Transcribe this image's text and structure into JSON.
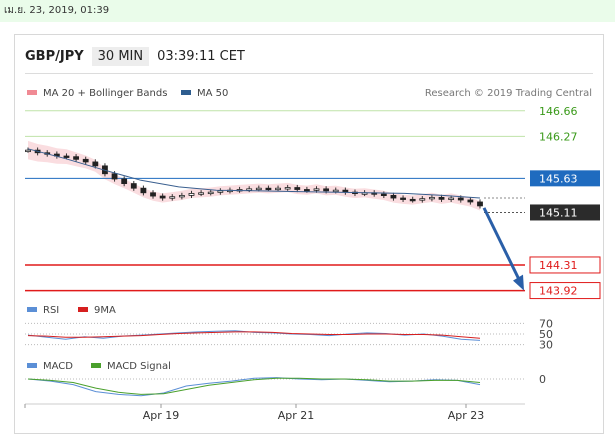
{
  "datetime": "เม.ย. 23, 2019, 01:39",
  "header": {
    "symbol": "GBP/JPY",
    "timeframe": "30 MIN",
    "time": "03:39:11 CET"
  },
  "colors": {
    "green_level": "#3a9a1a",
    "blue_level": "#1f6bbf",
    "red_level": "#e01a1a",
    "current_badge": "#2b2b2b",
    "arrow": "#2a5fa8",
    "ma50": "#3a5f8f",
    "bands": "#f7c6cc",
    "rsi": "#5b8fd6",
    "ninema": "#d61f1f",
    "macd": "#5b8fd6",
    "macd_signal": "#4aa02c"
  },
  "main_legend": [
    {
      "label": "MA 20 + Bollinger Bands",
      "color": "#f08a94"
    },
    {
      "label": "MA 50",
      "color": "#2e5d8f"
    }
  ],
  "credit": "Research © 2019 Trading Central",
  "rsi_legend": [
    {
      "label": "RSI",
      "color": "#5b8fd6"
    },
    {
      "label": "9MA",
      "color": "#d61f1f"
    }
  ],
  "macd_legend": [
    {
      "label": "MACD",
      "color": "#5b8fd6"
    },
    {
      "label": "MACD Signal",
      "color": "#4aa02c"
    }
  ],
  "chart_data": [
    {
      "type": "line",
      "title": "GBP/JPY 30 MIN",
      "x_ticks": [
        "Apr 19",
        "Apr 21",
        "Apr 23"
      ],
      "ylim": [
        143.7,
        146.9
      ],
      "levels": [
        {
          "label": "146.66",
          "value": 146.66,
          "kind": "resistance",
          "color": "#3a9a1a"
        },
        {
          "label": "146.27",
          "value": 146.27,
          "kind": "resistance",
          "color": "#3a9a1a"
        },
        {
          "label": "145.63",
          "value": 145.63,
          "kind": "pivot",
          "color": "#1f6bbf"
        },
        {
          "label": "145.11",
          "value": 145.11,
          "kind": "current",
          "color": "#2b2b2b"
        },
        {
          "label": "144.31",
          "value": 144.31,
          "kind": "support",
          "color": "#e01a1a"
        },
        {
          "label": "143.92",
          "value": 143.92,
          "kind": "support",
          "color": "#e01a1a"
        }
      ],
      "series": [
        {
          "values": [
            146.06,
            146.02,
            146.0,
            145.97,
            145.96,
            145.92,
            145.88,
            145.82,
            145.7,
            145.62,
            145.55,
            145.48,
            145.41,
            145.36,
            145.33,
            145.35,
            145.37,
            145.4,
            145.41,
            145.42,
            145.44,
            145.45,
            145.46,
            145.47,
            145.48,
            145.47,
            145.48,
            145.49,
            145.46,
            145.45,
            145.47,
            145.44,
            145.45,
            145.42,
            145.4,
            145.41,
            145.39,
            145.37,
            145.33,
            145.31,
            145.3,
            145.32,
            145.34,
            145.31,
            145.33,
            145.3,
            145.27,
            145.21
          ]
        },
        {
          "name": "MA 50",
          "values": [
            146.08,
            145.93,
            145.76,
            145.6,
            145.5,
            145.45,
            145.44,
            145.43,
            145.42,
            145.41,
            145.4,
            145.37,
            145.33
          ]
        }
      ],
      "forecast_arrow": {
        "from": 145.18,
        "to": 143.92
      }
    },
    {
      "type": "line",
      "title": "RSI",
      "y_ticks": [
        "70",
        "50",
        "30"
      ],
      "ylim": [
        20,
        80
      ],
      "series": [
        {
          "name": "RSI",
          "values": [
            48,
            44,
            40,
            45,
            42,
            46,
            48,
            50,
            52,
            54,
            55,
            56,
            53,
            52,
            50,
            49,
            47,
            50,
            52,
            51,
            48,
            50,
            46,
            40,
            38
          ]
        },
        {
          "name": "9MA",
          "values": [
            47,
            46,
            44,
            44,
            45,
            46,
            47,
            49,
            51,
            52,
            53,
            54,
            54,
            53,
            51,
            50,
            49,
            49,
            50,
            50,
            49,
            49,
            48,
            45,
            42
          ]
        }
      ]
    },
    {
      "type": "line",
      "title": "MACD",
      "y_ticks": [
        "0"
      ],
      "ylim": [
        -0.3,
        0.1
      ],
      "series": [
        {
          "name": "MACD",
          "values": [
            0.0,
            -0.03,
            -0.08,
            -0.18,
            -0.22,
            -0.24,
            -0.2,
            -0.1,
            -0.06,
            -0.03,
            0.01,
            0.02,
            0.0,
            -0.01,
            0.0,
            -0.02,
            -0.04,
            -0.03,
            -0.01,
            -0.02,
            -0.08
          ]
        },
        {
          "name": "MACD Signal",
          "values": [
            0.0,
            -0.02,
            -0.05,
            -0.13,
            -0.19,
            -0.22,
            -0.21,
            -0.15,
            -0.09,
            -0.05,
            -0.01,
            0.01,
            0.01,
            0.0,
            0.0,
            -0.01,
            -0.03,
            -0.03,
            -0.02,
            -0.02,
            -0.05
          ]
        }
      ]
    }
  ]
}
